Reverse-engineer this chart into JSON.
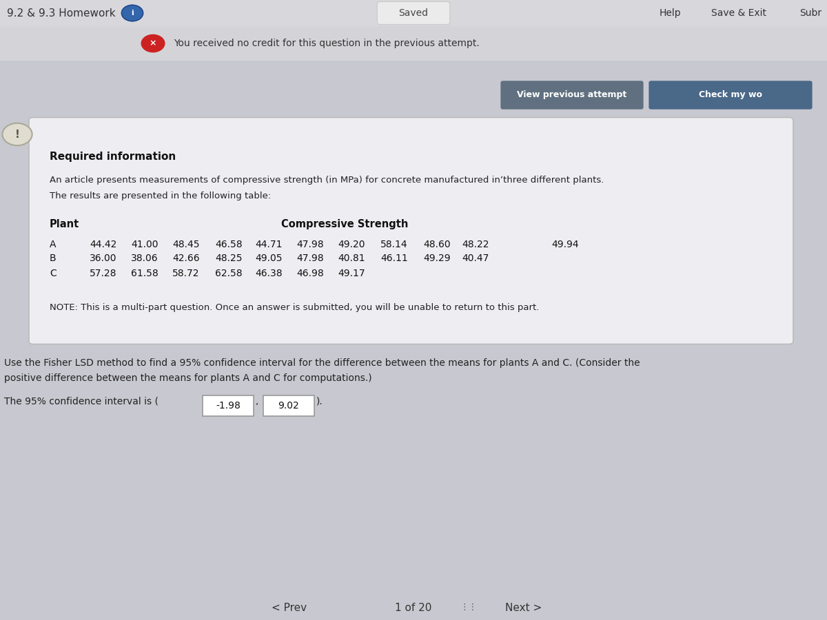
{
  "title": "9.2 & 9.3 Homework",
  "saved_text": "Saved",
  "help_text": "Help",
  "save_exit_text": "Save & Exit",
  "subr_text": "Subr",
  "error_msg": "You received no credit for this question in the previous attempt.",
  "view_prev_btn": "View previous attempt",
  "check_btn": "Check my wo",
  "required_info_title": "Required information",
  "paragraph1": "An article presents measurements of compressive strength (in MPa) for concrete manufactured in’three different plants.",
  "paragraph2": "The results are presented in the following table:",
  "plant_header": "Plant",
  "strength_header": "Compressive Strength",
  "plant_A_label": "A",
  "plant_B_label": "B",
  "plant_C_label": "C",
  "plant_A_vals": [
    "44.42",
    "41.00",
    "48.45",
    "46.58",
    "44.71",
    "47.98",
    "49.20",
    "58.14",
    "48.60",
    "48.22",
    "49.94"
  ],
  "plant_B_vals": [
    "36.00",
    "38.06",
    "42.66",
    "48.25",
    "49.05",
    "47.98",
    "40.81",
    "46.11",
    "49.29",
    "40.47"
  ],
  "plant_C_vals": [
    "57.28",
    "61.58",
    "58.72",
    "62.58",
    "46.38",
    "46.98",
    "49.17"
  ],
  "plant_A_skip": 10,
  "note_text": "NOTE: This is a multi-part question. Once an answer is submitted, you will be unable to return to this part.",
  "question_line1": "Use the Fisher LSD method to find a 95% confidence interval for the difference between the means for plants A and C. (Consider the",
  "question_line2": "positive difference between the means for plants A and C for computations.)",
  "answer_prefix": "The 95% confidence interval is (",
  "answer_val1": "-1.98",
  "answer_val2": "9.02",
  "answer_suffix": ").",
  "prev_text": "< Prev",
  "page_text": "1 of 20",
  "next_text": "Next >",
  "bg_color": "#c8c8d0",
  "header_bg": "#d8d8dc",
  "error_bar_bg": "#d4d4d8",
  "card_bg": "#eeeef2",
  "card_border": "#bbbbbb",
  "view_btn_color": "#607080",
  "check_btn_color": "#4a6888",
  "input_bg": "#ffffff",
  "input_border": "#999999",
  "text_dark": "#222222",
  "text_black": "#111111",
  "header_text": "#333333",
  "info_circle_color": "#3366aa",
  "error_circle_color": "#cc2222",
  "excl_circle_bg": "#e0ddd0",
  "excl_circle_border": "#aaa899",
  "excl_text_color": "#555544"
}
